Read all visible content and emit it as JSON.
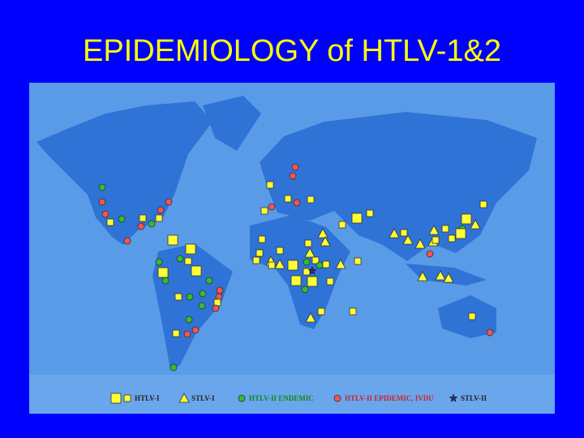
{
  "title": "EPIDEMIOLOGY of HTLV-1&2",
  "legend": [
    {
      "label": "HTLV-I"
    },
    {
      "label": "STLV-I"
    },
    {
      "label": "HTLV-II ENDEMIC"
    },
    {
      "label": "HTLV-II EPIDEMIC, IVDU"
    },
    {
      "label": "STLV-II"
    }
  ]
}
